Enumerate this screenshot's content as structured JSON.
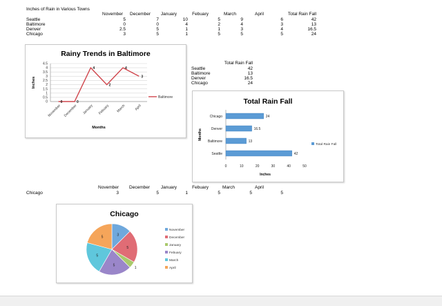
{
  "sheet": {
    "title": "Inches of Rain in Various Towns",
    "months": [
      "November",
      "December",
      "January",
      "Febuary",
      "March",
      "April"
    ],
    "total_header": "Total Rain Fall",
    "rows": [
      {
        "town": "Seattle",
        "values": [
          "5",
          "7",
          "10",
          "5",
          "9",
          "6"
        ],
        "total": "42"
      },
      {
        "town": "Baltimore",
        "values": [
          "0",
          "0",
          "4",
          "2",
          "4",
          "3"
        ],
        "total": "13"
      },
      {
        "town": "Denver",
        "values": [
          "2.5",
          "5",
          "1",
          "1",
          "3",
          "4"
        ],
        "total": "16.5"
      },
      {
        "town": "Chicago",
        "values": [
          "3",
          "5",
          "1",
          "5",
          "5",
          "5"
        ],
        "total": "24"
      }
    ]
  },
  "summary": {
    "header": "Total Rain Fall",
    "rows": [
      {
        "town": "Seattle",
        "total": "42"
      },
      {
        "town": "Baltimore",
        "total": "13"
      },
      {
        "town": "Denver",
        "total": "16.5"
      },
      {
        "town": "Chicago",
        "total": "24"
      }
    ]
  },
  "chicago_block": {
    "months": [
      "November",
      "December",
      "January",
      "Febuary",
      "March",
      "April"
    ],
    "town": "Chicago",
    "values": [
      "3",
      "5",
      "1",
      "5",
      "5",
      "5"
    ]
  },
  "chart_data": [
    {
      "type": "line",
      "title": "Rainy Trends in Baltimore",
      "xlabel": "Months",
      "ylabel": "Inches",
      "categories": [
        "November",
        "December",
        "January",
        "Febuary",
        "March",
        "April"
      ],
      "yticks": [
        "0",
        "0.5",
        "1",
        "1.5",
        "2",
        "2.5",
        "3",
        "3.5",
        "4",
        "4.5"
      ],
      "ylim": [
        0,
        4.5
      ],
      "series": [
        {
          "name": "Baltimore",
          "values": [
            0,
            0,
            4,
            2,
            4,
            3
          ],
          "color": "#d0454c"
        }
      ],
      "data_labels": [
        "0",
        "0",
        "4",
        "2",
        "4",
        "3"
      ],
      "legend": "right",
      "grid": true
    },
    {
      "type": "bar",
      "orientation": "horizontal",
      "title": "Total Rain Fall",
      "xlabel": "Inches",
      "ylabel": "Months",
      "categories": [
        "Chicago",
        "Denver",
        "Baltimore",
        "Seattle"
      ],
      "values": [
        24,
        16.5,
        13,
        42
      ],
      "data_labels": [
        "24",
        "16.5",
        "13",
        "42"
      ],
      "xticks": [
        "0",
        "10",
        "20",
        "30",
        "40",
        "50"
      ],
      "xlim": [
        0,
        50
      ],
      "series": [
        {
          "name": "Total Rain Fall",
          "color": "#5b9bd5"
        }
      ],
      "legend": "right",
      "grid": false
    },
    {
      "type": "pie",
      "title": "Chicago",
      "categories": [
        "November",
        "December",
        "January",
        "Febuary",
        "March",
        "April"
      ],
      "values": [
        3,
        5,
        1,
        5,
        5,
        5
      ],
      "data_labels": [
        "3",
        "5",
        "1",
        "5",
        "5",
        "5"
      ],
      "colors": [
        "#6fa8dc",
        "#e06c75",
        "#a9c96b",
        "#9a86c9",
        "#5fc7dc",
        "#f5a55a"
      ],
      "legend": "right"
    }
  ]
}
